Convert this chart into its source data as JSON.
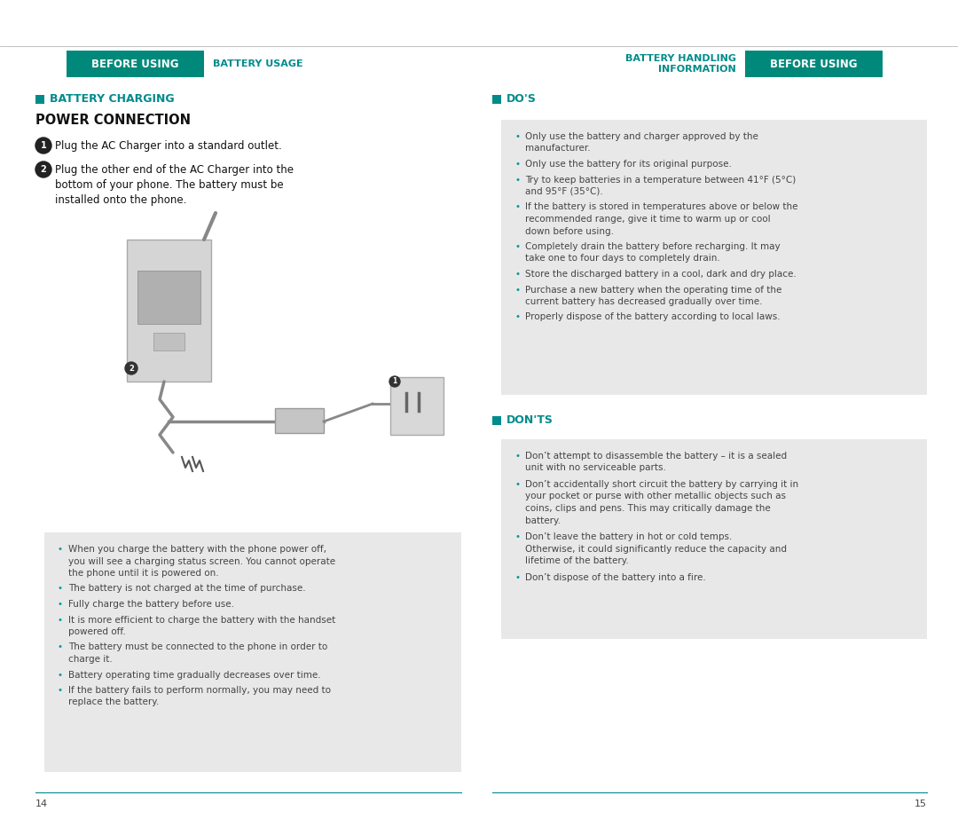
{
  "teal_color": "#008B8B",
  "teal_header": "#00897B",
  "light_gray_bg": "#e8e8e8",
  "white": "#ffffff",
  "black": "#111111",
  "text_dark": "#444444",
  "bullet_teal": "#009999",
  "left_header_box_text": "BEFORE USING",
  "left_header_plain_text": "BATTERY USAGE",
  "right_header_plain_text": "BATTERY HANDLING\nINFORMATION",
  "right_header_box_text": "BEFORE USING",
  "battery_charging_title": "BATTERY CHARGING",
  "power_connection_title": "POWER CONNECTION",
  "step1": "Plug the AC Charger into a standard outlet.",
  "step2": "Plug the other end of the AC Charger into the\nbottom of your phone. The battery must be\ninstalled onto the phone.",
  "left_bullets": [
    "When you charge the battery with the phone power off,\nyou will see a charging status screen. You cannot operate\nthe phone until it is powered on.",
    "The battery is not charged at the time of purchase.",
    "Fully charge the battery before use.",
    "It is more efficient to charge the battery with the handset\npowered off.",
    "The battery must be connected to the phone in order to\ncharge it.",
    "Battery operating time gradually decreases over time.",
    "If the battery fails to perform normally, you may need to\nreplace the battery."
  ],
  "dos_title": "DO'S",
  "dos_bullets": [
    "Only use the battery and charger approved by the\nmanufacturer.",
    "Only use the battery for its original purpose.",
    "Try to keep batteries in a temperature between 41°F (5°C)\nand 95°F (35°C).",
    "If the battery is stored in temperatures above or below the\nrecommended range, give it time to warm up or cool\ndown before using.",
    "Completely drain the battery before recharging. It may\ntake one to four days to completely drain.",
    "Store the discharged battery in a cool, dark and dry place.",
    "Purchase a new battery when the operating time of the\ncurrent battery has decreased gradually over time.",
    "Properly dispose of the battery according to local laws."
  ],
  "donts_title": "DON'TS",
  "donts_bullets": [
    "Don’t attempt to disassemble the battery – it is a sealed\nunit with no serviceable parts.",
    "Don’t accidentally short circuit the battery by carrying it in\nyour pocket or purse with other metallic objects such as\ncoins, clips and pens. This may critically damage the\nbattery.",
    "Don’t leave the battery in hot or cold temps.\nOtherwise, it could significantly reduce the capacity and\nlifetime of the battery.",
    "Don’t dispose of the battery into a fire."
  ],
  "page_num_left": "14",
  "page_num_right": "15"
}
